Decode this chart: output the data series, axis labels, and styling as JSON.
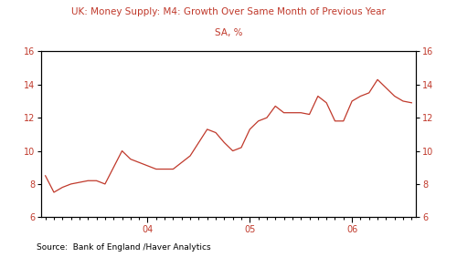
{
  "title_line1": "UK: Money Supply: M4: Growth Over Same Month of Previous Year",
  "title_line2": "SA, %",
  "source_text": "Source:  Bank of England /Haver Analytics",
  "line_color": "#c0392b",
  "bg_color": "#ffffff",
  "title_color": "#c0392b",
  "axis_color": "#c0392b",
  "ylim": [
    6,
    16
  ],
  "yticks": [
    6,
    8,
    10,
    12,
    14,
    16
  ],
  "x_tick_labels": [
    "04",
    "05",
    "06"
  ],
  "x_tick_positions": [
    12,
    24,
    36
  ],
  "num_months": 44,
  "values": [
    8.5,
    7.5,
    7.8,
    8.0,
    8.1,
    8.2,
    8.2,
    8.0,
    9.0,
    10.0,
    9.5,
    9.3,
    9.1,
    8.9,
    8.9,
    8.9,
    9.3,
    9.7,
    10.5,
    11.3,
    11.1,
    10.5,
    10.0,
    10.2,
    11.3,
    11.8,
    12.0,
    12.7,
    12.3,
    12.3,
    12.3,
    12.2,
    13.3,
    12.9,
    11.8,
    11.8,
    13.0,
    13.3,
    13.5,
    14.3,
    13.8,
    13.3,
    13.0,
    12.9
  ]
}
